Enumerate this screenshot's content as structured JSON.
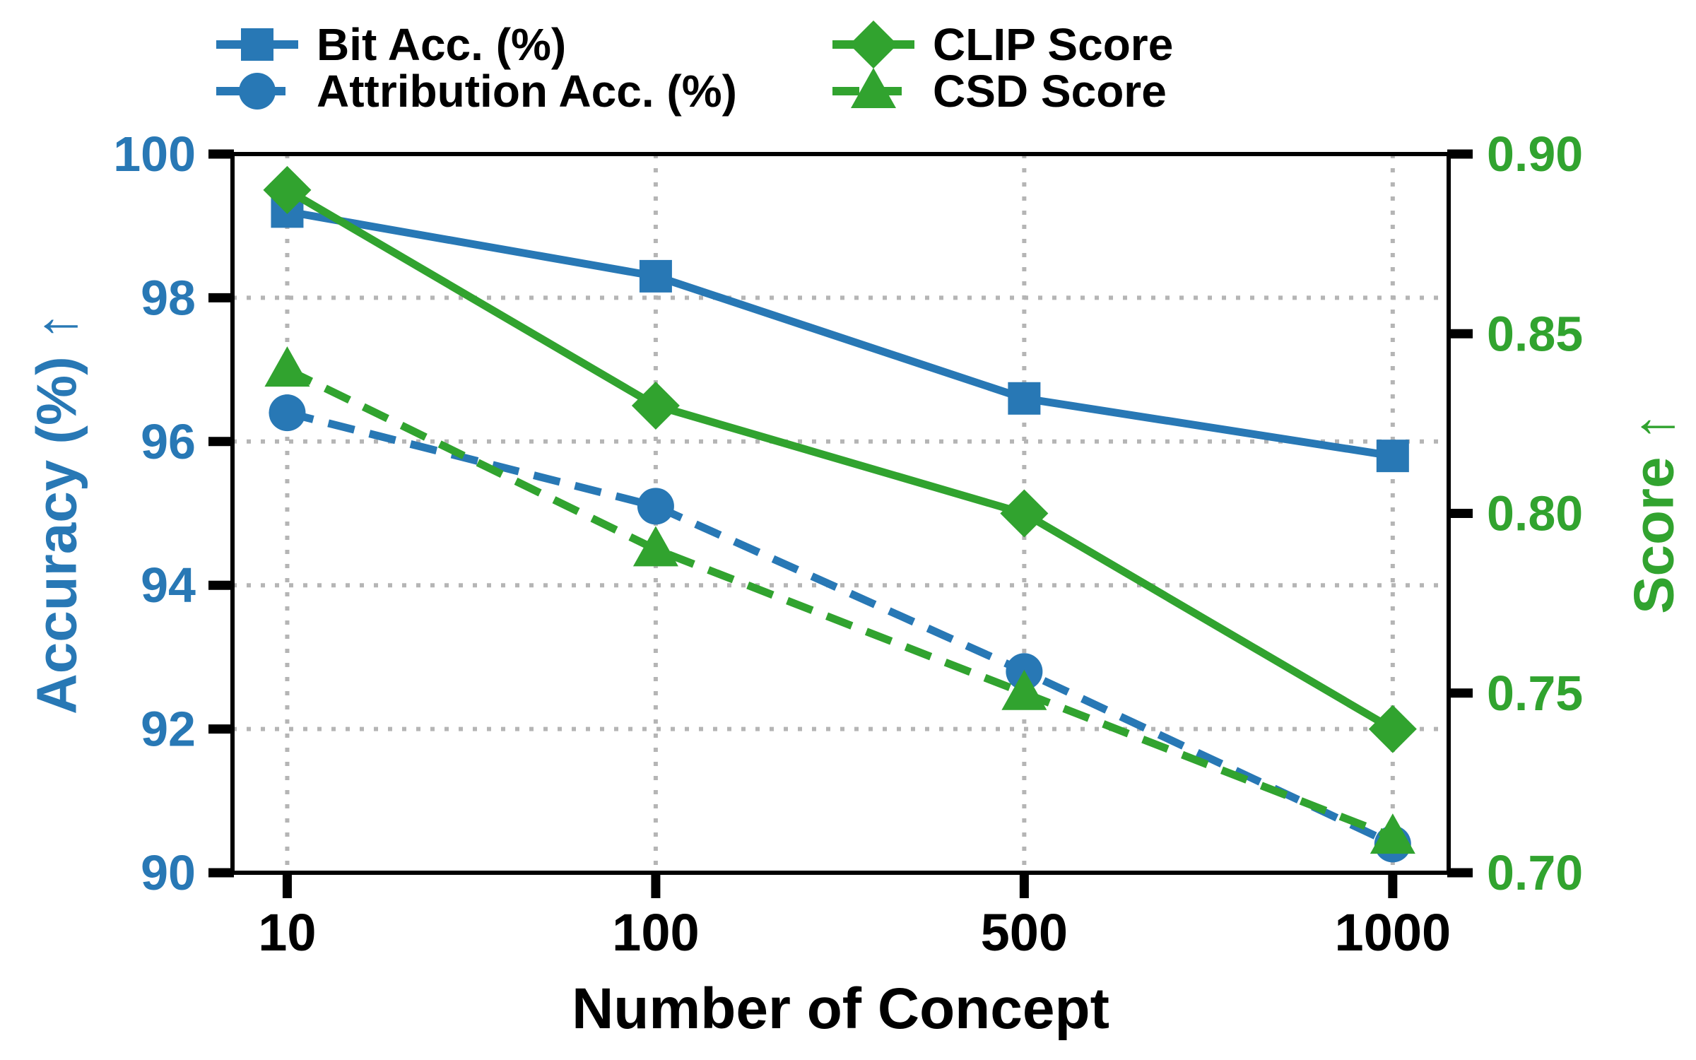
{
  "chart_data": {
    "type": "line",
    "title": "",
    "xlabel": "Number of Concept",
    "x_categories": [
      "10",
      "100",
      "500",
      "1000"
    ],
    "axes": {
      "left": {
        "label": "Accuracy (%) ↑",
        "color": "#2878b5",
        "range": [
          90,
          100
        ],
        "ticks": [
          "100",
          "98",
          "96",
          "94",
          "92",
          "90"
        ]
      },
      "right": {
        "label": "Score ↑",
        "color": "#31a32f",
        "range": [
          0.7,
          0.9
        ],
        "ticks": [
          "0.90",
          "0.85",
          "0.80",
          "0.75",
          "0.70"
        ]
      }
    },
    "series": [
      {
        "name": "Bit Acc. (%)",
        "axis": "left",
        "color": "#2878b5",
        "line": "solid",
        "marker": "square",
        "values": [
          99.2,
          98.3,
          96.6,
          95.8
        ]
      },
      {
        "name": "Attribution Acc. (%)",
        "axis": "left",
        "color": "#2878b5",
        "line": "dashed",
        "marker": "circle",
        "values": [
          96.4,
          95.1,
          92.8,
          90.4
        ]
      },
      {
        "name": "CLIP Score",
        "axis": "right",
        "color": "#31a32f",
        "line": "solid",
        "marker": "diamond",
        "values": [
          0.89,
          0.83,
          0.8,
          0.74
        ]
      },
      {
        "name": "CSD Score",
        "axis": "right",
        "color": "#31a32f",
        "line": "dashed",
        "marker": "triangle",
        "values": [
          0.84,
          0.79,
          0.75,
          0.71
        ]
      }
    ],
    "legend": {
      "position": "top",
      "columns": 2,
      "entries": [
        "Bit Acc. (%)",
        "Attribution Acc. (%)",
        "CLIP Score",
        "CSD Score"
      ]
    },
    "grid": {
      "style": "dotted",
      "color": "#b5b5b5",
      "horizontal": "left-axis-ticks",
      "vertical": "x-ticks"
    }
  }
}
